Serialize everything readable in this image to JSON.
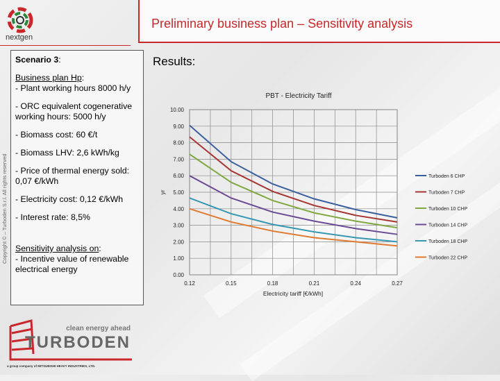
{
  "header": {
    "title": "Preliminary business plan – Sensitivity analysis",
    "logo_text": "nextgen"
  },
  "panel": {
    "scenario": "Scenario 3",
    "bp_heading": "Business plan Hp",
    "items": [
      "- Plant working hours 8000 h/y",
      "- ORC equivalent cogenerative working hours: 5000 h/y",
      "- Biomass cost: 60 €/t",
      "- Biomass LHV: 2,6 kWh/kg",
      "- Price of thermal energy sold: 0,07 €/kWh",
      "- Electricity cost: 0,12 €/kWh",
      "- Interest rate: 8,5%"
    ],
    "sens_heading": "Sensitivity analysis on",
    "sens_item": "- Incentive value of renewable electrical energy"
  },
  "copyright": "Copyright © – Turboden S.r.l. All rights reserved",
  "results_label": "Results:",
  "footer": {
    "tagline": "clean energy ahead",
    "brand": "TURBODEN",
    "group": "a group company of  MITSUBISHI HEAVY INDUSTRIES, LTD."
  },
  "chart_data": {
    "type": "line",
    "title": "PBT - Electricity Tariff",
    "xlabel": "Electricity tariff [€/kWh]",
    "ylabel": "yr",
    "x": [
      "0.12",
      "0.15",
      "0.18",
      "0.21",
      "0.24",
      "0.27"
    ],
    "ylim": [
      0,
      10
    ],
    "yticks": [
      "0.00",
      "1.00",
      "2.00",
      "3.00",
      "4.00",
      "5.00",
      "6.00",
      "7.00",
      "8.00",
      "9.00",
      "10.00"
    ],
    "grid": true,
    "legend": "right",
    "series": [
      {
        "name": "Turboden 6 CHP",
        "color": "#3a5f9f",
        "values": [
          9.05,
          6.85,
          5.5,
          4.6,
          3.95,
          3.45
        ]
      },
      {
        "name": "Turboden 7 CHP",
        "color": "#a63432",
        "values": [
          8.35,
          6.3,
          5.05,
          4.2,
          3.6,
          3.2
        ]
      },
      {
        "name": "Turboden 10 CHP",
        "color": "#80a840",
        "values": [
          7.3,
          5.6,
          4.5,
          3.75,
          3.25,
          2.85
        ]
      },
      {
        "name": "Turboden 14 CHP",
        "color": "#6a4a94",
        "values": [
          6.0,
          4.65,
          3.8,
          3.25,
          2.8,
          2.45
        ]
      },
      {
        "name": "Turboden 18 CHP",
        "color": "#3697b3",
        "values": [
          4.65,
          3.7,
          3.05,
          2.6,
          2.25,
          2.0
        ]
      },
      {
        "name": "Turboden 22 CHP",
        "color": "#e07a30",
        "values": [
          4.0,
          3.2,
          2.65,
          2.25,
          2.0,
          1.75
        ]
      }
    ]
  }
}
